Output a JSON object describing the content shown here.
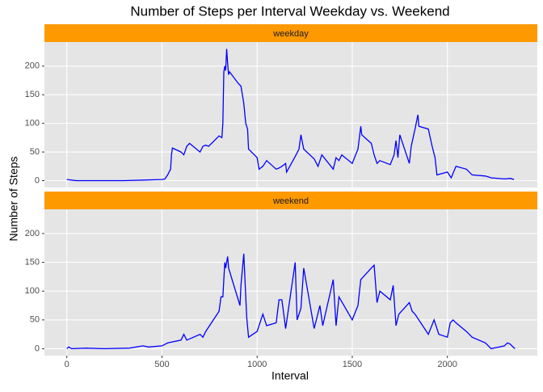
{
  "figure": {
    "title": "Number of Steps per Interval Weekday vs. Weekend",
    "x_label": "Interval",
    "y_label": "Number of Steps",
    "strip_color": "#ff9900",
    "panel_color": "#e5e5e5"
  },
  "chart_data": [
    {
      "type": "line",
      "title": "weekday",
      "color": "#0000ff",
      "grid": true,
      "x": [
        0,
        25,
        50,
        100,
        200,
        300,
        400,
        500,
        515,
        530,
        545,
        550,
        555,
        600,
        615,
        630,
        645,
        700,
        715,
        730,
        745,
        800,
        815,
        820,
        825,
        830,
        835,
        840,
        845,
        850,
        855,
        900,
        915,
        930,
        940,
        950,
        955,
        1000,
        1010,
        1030,
        1050,
        1100,
        1115,
        1130,
        1150,
        1155,
        1200,
        1220,
        1230,
        1245,
        1300,
        1320,
        1340,
        1400,
        1415,
        1430,
        1445,
        1500,
        1530,
        1545,
        1550,
        1600,
        1615,
        1630,
        1645,
        1700,
        1720,
        1730,
        1740,
        1750,
        1800,
        1810,
        1830,
        1845,
        1850,
        1900,
        1920,
        1935,
        1945,
        2000,
        2020,
        2045,
        2100,
        2130,
        2200,
        2230,
        2300,
        2330,
        2350
      ],
      "values": [
        2,
        1,
        0,
        0,
        0,
        0,
        1,
        2,
        3,
        10,
        20,
        45,
        57,
        50,
        45,
        60,
        65,
        50,
        60,
        62,
        60,
        78,
        75,
        100,
        190,
        200,
        192,
        230,
        205,
        185,
        190,
        170,
        165,
        135,
        100,
        90,
        55,
        40,
        20,
        25,
        35,
        20,
        22,
        25,
        30,
        15,
        42,
        55,
        80,
        55,
        38,
        25,
        45,
        20,
        40,
        35,
        45,
        30,
        55,
        95,
        80,
        65,
        45,
        30,
        35,
        28,
        45,
        70,
        40,
        80,
        30,
        60,
        90,
        115,
        95,
        90,
        60,
        40,
        10,
        15,
        5,
        25,
        20,
        10,
        8,
        5,
        3,
        4,
        2
      ],
      "xlim": [
        -117.75,
        2472.75
      ],
      "ylim": [
        -12,
        242
      ],
      "xticks": [
        0,
        500,
        1000,
        1500,
        2000
      ],
      "yticks": [
        0,
        50,
        100,
        150,
        200
      ]
    },
    {
      "type": "line",
      "title": "weekend",
      "color": "#0000ff",
      "grid": true,
      "x": [
        0,
        10,
        25,
        100,
        200,
        330,
        400,
        430,
        500,
        530,
        600,
        615,
        630,
        700,
        715,
        730,
        800,
        810,
        820,
        830,
        835,
        845,
        850,
        910,
        915,
        930,
        945,
        955,
        1000,
        1030,
        1045,
        1050,
        1100,
        1115,
        1130,
        1140,
        1150,
        1200,
        1210,
        1230,
        1245,
        1300,
        1330,
        1345,
        1400,
        1415,
        1430,
        1500,
        1530,
        1545,
        1600,
        1615,
        1630,
        1645,
        1700,
        1715,
        1730,
        1745,
        1800,
        1815,
        1830,
        1900,
        1930,
        1955,
        2000,
        2015,
        2030,
        2045,
        2100,
        2130,
        2200,
        2230,
        2300,
        2315,
        2330,
        2345,
        2355
      ],
      "values": [
        0,
        3,
        0,
        1,
        0,
        1,
        5,
        3,
        5,
        10,
        15,
        25,
        15,
        25,
        20,
        30,
        65,
        90,
        90,
        150,
        140,
        160,
        140,
        75,
        110,
        165,
        55,
        20,
        30,
        60,
        45,
        40,
        45,
        85,
        85,
        60,
        35,
        150,
        50,
        70,
        140,
        35,
        75,
        40,
        120,
        40,
        90,
        50,
        75,
        120,
        140,
        145,
        80,
        100,
        85,
        110,
        40,
        60,
        80,
        65,
        60,
        25,
        50,
        25,
        20,
        45,
        50,
        45,
        30,
        20,
        10,
        0,
        5,
        10,
        8,
        3,
        0
      ],
      "xlim": [
        -117.75,
        2472.75
      ],
      "ylim": [
        -12,
        242
      ],
      "xticks": [
        0,
        500,
        1000,
        1500,
        2000
      ],
      "yticks": [
        0,
        50,
        100,
        150,
        200
      ]
    }
  ]
}
